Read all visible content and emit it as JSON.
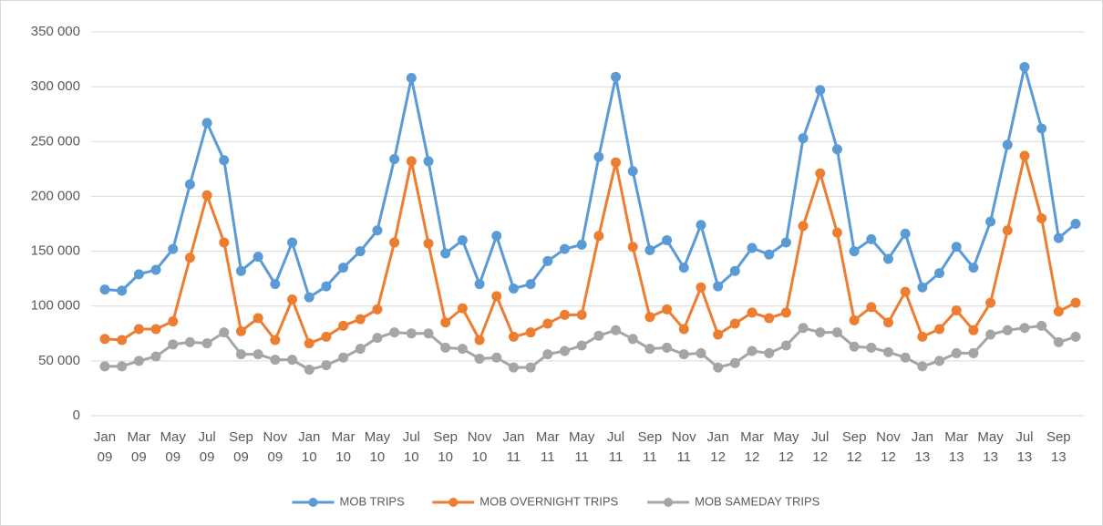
{
  "chart_data": {
    "type": "line",
    "categories": [
      "Jan 09",
      null,
      "Mar 09",
      null,
      "May 09",
      null,
      "Jul 09",
      null,
      "Sep 09",
      null,
      "Nov 09",
      null,
      "Jan 10",
      null,
      "Mar 10",
      null,
      "May 10",
      null,
      "Jul 10",
      null,
      "Sep 10",
      null,
      "Nov 10",
      null,
      "Jan 11",
      null,
      "Mar 11",
      null,
      "May 11",
      null,
      "Jul 11",
      null,
      "Sep 11",
      null,
      "Nov 11",
      null,
      "Jan 12",
      null,
      "Mar 12",
      null,
      "May 12",
      null,
      "Jul 12",
      null,
      "Sep 12",
      null,
      "Nov 12",
      null,
      "Jan 13",
      null,
      "Mar 13",
      null,
      "May 13",
      null,
      "Jul 13",
      null,
      "Sep 13",
      null
    ],
    "series": [
      {
        "name": "MOB TRIPS",
        "color": "#5b9bd5",
        "values": [
          115000,
          114000,
          129000,
          133000,
          152000,
          211000,
          267000,
          233000,
          132000,
          145000,
          120000,
          158000,
          108000,
          118000,
          135000,
          150000,
          169000,
          234000,
          308000,
          232000,
          148000,
          160000,
          120000,
          164000,
          116000,
          120000,
          141000,
          152000,
          156000,
          236000,
          309000,
          223000,
          151000,
          160000,
          135000,
          174000,
          118000,
          132000,
          153000,
          147000,
          158000,
          253000,
          297000,
          243000,
          150000,
          161000,
          143000,
          166000,
          117000,
          130000,
          154000,
          135000,
          177000,
          247000,
          318000,
          262000,
          162000,
          175000
        ]
      },
      {
        "name": "MOB OVERNIGHT TRIPS",
        "color": "#ed7d31",
        "values": [
          70000,
          69000,
          79000,
          79000,
          86000,
          144000,
          201000,
          158000,
          77000,
          89000,
          69000,
          106000,
          66000,
          72000,
          82000,
          88000,
          97000,
          158000,
          232000,
          157000,
          85000,
          98000,
          69000,
          109000,
          72000,
          76000,
          84000,
          92000,
          92000,
          164000,
          231000,
          154000,
          90000,
          97000,
          79000,
          117000,
          74000,
          84000,
          94000,
          89000,
          94000,
          173000,
          221000,
          167000,
          87000,
          99000,
          85000,
          113000,
          72000,
          79000,
          96000,
          78000,
          103000,
          169000,
          237000,
          180000,
          95000,
          103000
        ]
      },
      {
        "name": "MOB SAMEDAY TRIPS",
        "color": "#a5a5a5",
        "values": [
          45000,
          45000,
          50000,
          54000,
          65000,
          67000,
          66000,
          76000,
          56000,
          56000,
          51000,
          51000,
          42000,
          46000,
          53000,
          61000,
          71000,
          76000,
          75000,
          75000,
          62000,
          61000,
          52000,
          53000,
          44000,
          44000,
          56000,
          59000,
          64000,
          73000,
          78000,
          70000,
          61000,
          62000,
          56000,
          57000,
          44000,
          48000,
          59000,
          57000,
          64000,
          80000,
          76000,
          76000,
          63000,
          62000,
          58000,
          53000,
          45000,
          50000,
          57000,
          57000,
          74000,
          78000,
          80000,
          82000,
          67000,
          72000
        ]
      }
    ],
    "ylim": [
      0,
      350000
    ],
    "yticks": [
      0,
      {
        "value": 50000,
        "label": "50 000"
      },
      {
        "value": 100000,
        "label": "100 000"
      },
      {
        "value": 150000,
        "label": "150 000"
      },
      {
        "value": 200000,
        "label": "200 000"
      },
      {
        "value": 250000,
        "label": "250 000"
      },
      {
        "value": 300000,
        "label": "300 000"
      },
      {
        "value": 350000,
        "label": "350 000"
      }
    ],
    "grid": true,
    "legend": "bottom"
  }
}
